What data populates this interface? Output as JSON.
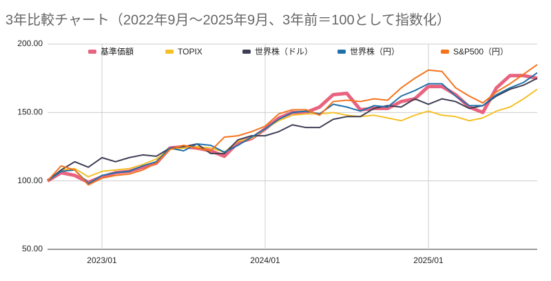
{
  "chart_data": {
    "type": "line",
    "title": "3年比較チャート（2022年9月～2025年9月、3年前＝100として指数化）",
    "x": [
      "2022/09",
      "2022/10",
      "2022/11",
      "2022/12",
      "2023/01",
      "2023/02",
      "2023/03",
      "2023/04",
      "2023/05",
      "2023/06",
      "2023/07",
      "2023/08",
      "2023/09",
      "2023/10",
      "2023/11",
      "2023/12",
      "2024/01",
      "2024/02",
      "2024/03",
      "2024/04",
      "2024/05",
      "2024/06",
      "2024/07",
      "2024/08",
      "2024/09",
      "2024/10",
      "2024/11",
      "2024/12",
      "2025/01",
      "2025/02",
      "2025/03",
      "2025/04",
      "2025/05",
      "2025/06",
      "2025/07",
      "2025/08",
      "2025/09"
    ],
    "xticks": [
      "2023/01",
      "2024/01",
      "2025/01"
    ],
    "ylim": [
      50,
      200
    ],
    "yticks": [
      {
        "value": 50,
        "label": "50.00"
      },
      {
        "value": 100,
        "label": "100.00"
      },
      {
        "value": 150,
        "label": "150.00"
      },
      {
        "value": 200,
        "label": "200.00"
      }
    ],
    "grid": true,
    "legend": "top",
    "series": [
      {
        "name": "基準価額",
        "color": "#e8637f",
        "values": [
          100,
          106,
          104,
          99,
          103,
          106,
          107,
          110,
          113,
          124,
          125,
          124,
          122,
          118,
          128,
          131,
          138,
          146,
          150,
          150,
          154,
          163,
          164,
          152,
          153,
          153,
          158,
          160,
          169,
          169,
          163,
          154,
          150,
          168,
          177,
          177,
          175
        ]
      },
      {
        "name": "TOPIX",
        "color": "#f5c026",
        "values": [
          100,
          108,
          109,
          103,
          107,
          108,
          109,
          112,
          116,
          123,
          124,
          125,
          124,
          121,
          129,
          131,
          138,
          144,
          148,
          149,
          149,
          150,
          148,
          147,
          148,
          146,
          144,
          148,
          151,
          148,
          147,
          144,
          146,
          151,
          154,
          160,
          167
        ]
      },
      {
        "name": "世界株（ドル）",
        "color": "#3d3d55",
        "values": [
          100,
          108,
          114,
          110,
          117,
          114,
          117,
          119,
          118,
          124,
          125,
          127,
          120,
          120,
          130,
          133,
          133,
          136,
          141,
          139,
          139,
          145,
          147,
          147,
          153,
          155,
          154,
          160,
          156,
          160,
          158,
          153,
          155,
          162,
          167,
          170,
          175
        ]
      },
      {
        "name": "世界株（円）",
        "color": "#1f6fa8",
        "values": [
          100,
          107,
          108,
          98,
          104,
          106,
          107,
          111,
          114,
          124,
          122,
          127,
          126,
          121,
          126,
          132,
          138,
          145,
          150,
          151,
          149,
          156,
          154,
          151,
          155,
          154,
          162,
          166,
          171,
          171,
          162,
          155,
          155,
          163,
          168,
          172,
          179
        ]
      },
      {
        "name": "S&P500（円）",
        "color": "#f4731c",
        "values": [
          100,
          111,
          108,
          97,
          102,
          104,
          105,
          108,
          113,
          123,
          126,
          124,
          122,
          132,
          133,
          136,
          140,
          149,
          152,
          152,
          148,
          158,
          159,
          158,
          160,
          159,
          168,
          175,
          181,
          180,
          168,
          162,
          157,
          165,
          171,
          178,
          185
        ]
      }
    ]
  }
}
